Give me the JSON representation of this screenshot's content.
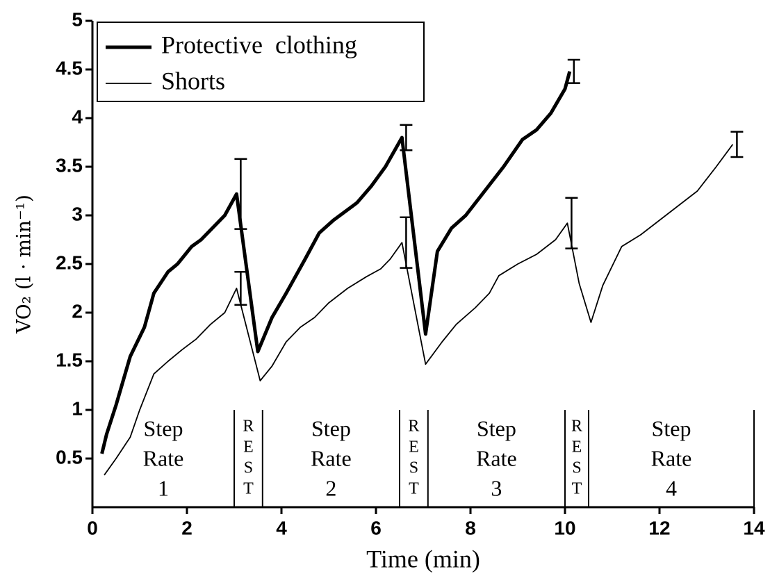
{
  "chart_data": {
    "type": "line",
    "xlabel": "Time  (min)",
    "ylabel": "VO₂ (l · min⁻¹)",
    "xlim": [
      0,
      14
    ],
    "xticks": [
      0,
      2,
      4,
      6,
      8,
      10,
      12,
      14
    ],
    "ylim": [
      0,
      5
    ],
    "yticks": [
      0.5,
      1,
      1.5,
      2,
      2.5,
      3,
      3.5,
      4,
      4.5,
      5
    ],
    "legend": "upper left",
    "series": [
      {
        "name": "Protective  clothing",
        "color": "#000000",
        "linewidth": 5,
        "x": [
          0.2,
          0.3,
          0.5,
          0.8,
          1.1,
          1.3,
          1.6,
          1.8,
          2.1,
          2.3,
          2.6,
          2.8,
          3.05,
          3.5,
          3.8,
          4.1,
          4.5,
          4.8,
          5.1,
          5.6,
          5.9,
          6.2,
          6.55,
          7.05,
          7.3,
          7.6,
          7.9,
          8.3,
          8.7,
          9.1,
          9.4,
          9.7,
          10.0,
          10.1
        ],
        "values": [
          0.55,
          0.75,
          1.05,
          1.55,
          1.85,
          2.2,
          2.42,
          2.5,
          2.68,
          2.75,
          2.9,
          3.0,
          3.22,
          1.6,
          1.95,
          2.2,
          2.55,
          2.82,
          2.95,
          3.13,
          3.3,
          3.5,
          3.8,
          1.78,
          2.63,
          2.87,
          3.0,
          3.25,
          3.5,
          3.78,
          3.88,
          4.05,
          4.3,
          4.48
        ],
        "errors": [
          null,
          null,
          null,
          null,
          null,
          null,
          null,
          null,
          null,
          null,
          null,
          null,
          0.36,
          null,
          null,
          null,
          null,
          null,
          null,
          null,
          null,
          null,
          0.13,
          null,
          null,
          null,
          null,
          null,
          null,
          null,
          null,
          null,
          null,
          0.12
        ]
      },
      {
        "name": "Shorts",
        "color": "#000000",
        "linewidth": 1.8,
        "x": [
          0.25,
          0.5,
          0.8,
          1.0,
          1.3,
          1.6,
          1.9,
          2.2,
          2.5,
          2.8,
          3.05,
          3.55,
          3.8,
          4.1,
          4.4,
          4.7,
          5.0,
          5.4,
          5.8,
          6.1,
          6.3,
          6.55,
          7.05,
          7.4,
          7.7,
          8.1,
          8.4,
          8.6,
          9.0,
          9.4,
          9.8,
          10.05,
          10.3,
          10.55,
          10.8,
          11.2,
          11.6,
          12.0,
          12.4,
          12.8,
          13.2,
          13.55
        ],
        "values": [
          0.33,
          0.5,
          0.72,
          1.0,
          1.37,
          1.5,
          1.62,
          1.73,
          1.88,
          2.0,
          2.25,
          1.3,
          1.45,
          1.7,
          1.85,
          1.95,
          2.1,
          2.25,
          2.37,
          2.45,
          2.55,
          2.72,
          1.47,
          1.7,
          1.88,
          2.05,
          2.2,
          2.38,
          2.5,
          2.6,
          2.75,
          2.92,
          2.3,
          1.9,
          2.28,
          2.68,
          2.8,
          2.95,
          3.1,
          3.25,
          3.5,
          3.73
        ],
        "errors": [
          null,
          null,
          null,
          null,
          null,
          null,
          null,
          null,
          null,
          null,
          0.17,
          null,
          null,
          null,
          null,
          null,
          null,
          null,
          null,
          null,
          null,
          0.26,
          null,
          null,
          null,
          null,
          null,
          null,
          null,
          null,
          null,
          0.26,
          null,
          null,
          null,
          null,
          null,
          null,
          null,
          null,
          null,
          0.13
        ]
      }
    ],
    "regions": [
      {
        "xlim": [
          0,
          3
        ],
        "label": [
          "Step",
          "Rate",
          "1"
        ]
      },
      {
        "xlim": [
          3,
          3.6
        ],
        "label": [
          "R",
          "E",
          "S",
          "T"
        ]
      },
      {
        "xlim": [
          3.6,
          6.5
        ],
        "label": [
          "Step",
          "Rate",
          "2"
        ]
      },
      {
        "xlim": [
          6.5,
          7.1
        ],
        "label": [
          "R",
          "E",
          "S",
          "T"
        ]
      },
      {
        "xlim": [
          7.1,
          10
        ],
        "label": [
          "Step",
          "Rate",
          "3"
        ]
      },
      {
        "xlim": [
          10,
          10.5
        ],
        "label": [
          "R",
          "E",
          "S",
          "T"
        ]
      },
      {
        "xlim": [
          10.5,
          14
        ],
        "label": [
          "Step",
          "Rate",
          "4"
        ]
      }
    ]
  }
}
